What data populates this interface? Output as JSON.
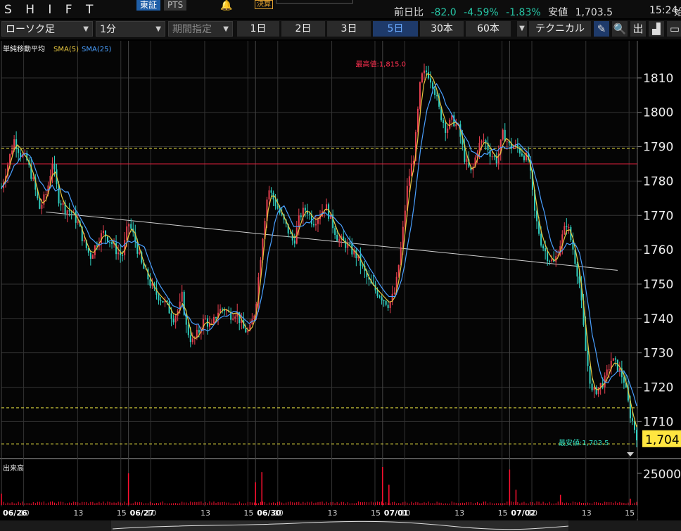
{
  "header": {
    "ticker": "S H I F T",
    "market_tabs": [
      "東証",
      "PTS"
    ],
    "badge": "決算",
    "quote": {
      "prev_label": "前日比",
      "change": "-82.0",
      "change_pct": "-4.59%",
      "change_pct2": "-1.83%",
      "low_label": "安値",
      "low_value": "1,703.5",
      "time": "15:24",
      "cut_text": "始"
    }
  },
  "toolbar": {
    "chart_type": "ローソク足",
    "interval": "1分",
    "range_label": "期間指定",
    "periods": [
      "1日",
      "2日",
      "3日",
      "5日",
      "30本",
      "60本"
    ],
    "active_period": "5日",
    "technical_label": "テクニカル",
    "tools": [
      "pencil-icon",
      "zoom-icon",
      "volume-icon",
      "area-chart-icon",
      "window-icon"
    ],
    "tool_glyphs": [
      "✎",
      "🔍",
      "出",
      "▟",
      "▭"
    ]
  },
  "legend": {
    "title": "単純移動平均",
    "sma5": "SMA(5)",
    "sma25": "SMA(25)"
  },
  "colors": {
    "background": "#000000",
    "grid": "#333333",
    "sma5": "#e8c840",
    "sma25": "#4aa0ff",
    "candle_up": "#e84050",
    "candle_down": "#30d0c0",
    "high_line": "#e0203a",
    "hline": "#e8e040",
    "trendline": "#d0d0d0",
    "volume": "#ff1030",
    "current_price_bg": "#ffe640"
  },
  "chart_data": {
    "type": "line",
    "title": "",
    "interval": "1分",
    "price_axis": {
      "ticks": [
        1710,
        1720,
        1730,
        1740,
        1750,
        1760,
        1770,
        1780,
        1790,
        1800,
        1810
      ],
      "ylim": [
        1702.5,
        1820
      ]
    },
    "x_labels": [
      {
        "label": "06/26",
        "idx": 0,
        "bold": true
      },
      {
        "label": "10",
        "idx": 0.035
      },
      {
        "label": "13",
        "idx": 0.12
      },
      {
        "label": "15",
        "idx": 0.188
      },
      {
        "label": "06/27",
        "idx": 0.2,
        "bold": true
      },
      {
        "label": "10",
        "idx": 0.235
      },
      {
        "label": "13",
        "idx": 0.32
      },
      {
        "label": "15",
        "idx": 0.388
      },
      {
        "label": "06/30",
        "idx": 0.4,
        "bold": true
      },
      {
        "label": "10",
        "idx": 0.435
      },
      {
        "label": "13",
        "idx": 0.52
      },
      {
        "label": "15",
        "idx": 0.588
      },
      {
        "label": "07/01",
        "idx": 0.6,
        "bold": true
      },
      {
        "label": "10",
        "idx": 0.635
      },
      {
        "label": "13",
        "idx": 0.72
      },
      {
        "label": "15",
        "idx": 0.788
      },
      {
        "label": "07/02",
        "idx": 0.8,
        "bold": true
      },
      {
        "label": "10",
        "idx": 0.835
      },
      {
        "label": "13",
        "idx": 0.92
      },
      {
        "label": "15",
        "idx": 0.988
      }
    ],
    "price_series": [
      [
        0,
        1778
      ],
      [
        0.01,
        1785
      ],
      [
        0.02,
        1792
      ],
      [
        0.03,
        1788
      ],
      [
        0.04,
        1786
      ],
      [
        0.05,
        1780
      ],
      [
        0.06,
        1772
      ],
      [
        0.07,
        1776
      ],
      [
        0.075,
        1780
      ],
      [
        0.08,
        1786
      ],
      [
        0.09,
        1775
      ],
      [
        0.1,
        1772
      ],
      [
        0.11,
        1771
      ],
      [
        0.12,
        1768
      ],
      [
        0.13,
        1762
      ],
      [
        0.14,
        1758
      ],
      [
        0.15,
        1762
      ],
      [
        0.16,
        1765
      ],
      [
        0.17,
        1763
      ],
      [
        0.18,
        1760
      ],
      [
        0.19,
        1758
      ],
      [
        0.2,
        1768
      ],
      [
        0.21,
        1763
      ],
      [
        0.22,
        1756
      ],
      [
        0.23,
        1752
      ],
      [
        0.24,
        1748
      ],
      [
        0.25,
        1746
      ],
      [
        0.26,
        1744
      ],
      [
        0.27,
        1740
      ],
      [
        0.28,
        1743
      ],
      [
        0.285,
        1747
      ],
      [
        0.29,
        1738
      ],
      [
        0.3,
        1733
      ],
      [
        0.31,
        1736
      ],
      [
        0.32,
        1740
      ],
      [
        0.33,
        1737
      ],
      [
        0.34,
        1742
      ],
      [
        0.35,
        1743
      ],
      [
        0.36,
        1741
      ],
      [
        0.37,
        1742
      ],
      [
        0.38,
        1737
      ],
      [
        0.39,
        1736
      ],
      [
        0.4,
        1743
      ],
      [
        0.41,
        1762
      ],
      [
        0.42,
        1778
      ],
      [
        0.43,
        1774
      ],
      [
        0.44,
        1770
      ],
      [
        0.45,
        1766
      ],
      [
        0.46,
        1762
      ],
      [
        0.47,
        1770
      ],
      [
        0.48,
        1772
      ],
      [
        0.49,
        1768
      ],
      [
        0.5,
        1770
      ],
      [
        0.51,
        1773
      ],
      [
        0.52,
        1768
      ],
      [
        0.53,
        1763
      ],
      [
        0.54,
        1762
      ],
      [
        0.55,
        1760
      ],
      [
        0.56,
        1758
      ],
      [
        0.57,
        1754
      ],
      [
        0.58,
        1750
      ],
      [
        0.59,
        1748
      ],
      [
        0.6,
        1746
      ],
      [
        0.61,
        1744
      ],
      [
        0.62,
        1748
      ],
      [
        0.63,
        1762
      ],
      [
        0.64,
        1780
      ],
      [
        0.65,
        1788
      ],
      [
        0.66,
        1810
      ],
      [
        0.67,
        1812
      ],
      [
        0.68,
        1808
      ],
      [
        0.69,
        1800
      ],
      [
        0.7,
        1795
      ],
      [
        0.71,
        1798
      ],
      [
        0.72,
        1795
      ],
      [
        0.73,
        1786
      ],
      [
        0.74,
        1782
      ],
      [
        0.75,
        1790
      ],
      [
        0.76,
        1792
      ],
      [
        0.77,
        1788
      ],
      [
        0.78,
        1786
      ],
      [
        0.79,
        1794
      ],
      [
        0.8,
        1790
      ],
      [
        0.81,
        1790
      ],
      [
        0.82,
        1788
      ],
      [
        0.83,
        1786
      ],
      [
        0.84,
        1770
      ],
      [
        0.85,
        1762
      ],
      [
        0.86,
        1758
      ],
      [
        0.87,
        1756
      ],
      [
        0.88,
        1762
      ],
      [
        0.89,
        1768
      ],
      [
        0.9,
        1760
      ],
      [
        0.91,
        1750
      ],
      [
        0.92,
        1730
      ],
      [
        0.93,
        1718
      ],
      [
        0.94,
        1720
      ],
      [
        0.95,
        1722
      ],
      [
        0.96,
        1728
      ],
      [
        0.97,
        1726
      ],
      [
        0.98,
        1722
      ],
      [
        0.99,
        1712
      ],
      [
        1.0,
        1706
      ]
    ],
    "price_high": {
      "label": "最高値:1,815.0",
      "value": 1815.0,
      "idx": 0.655
    },
    "price_low": {
      "label": "最安値:1,703.5",
      "value": 1703.5,
      "idx": 0.98
    },
    "current_price": "1,704",
    "horizontal_lines": [
      {
        "value": 1789.5,
        "style": "dashed",
        "color": "#e8e040"
      },
      {
        "value": 1785,
        "style": "solid",
        "color": "#e0203a"
      },
      {
        "value": 1714,
        "style": "dashed",
        "color": "#e8e040"
      },
      {
        "value": 1703.5,
        "style": "dashed",
        "color": "#e8e040"
      }
    ],
    "trendline": {
      "start": [
        0.07,
        1771
      ],
      "end": [
        0.97,
        1754
      ]
    },
    "volume": {
      "title": "出来高",
      "axis_label": "25000",
      "spikes": [
        [
          0.0,
          9000
        ],
        [
          0.2,
          25000
        ],
        [
          0.4,
          18000
        ],
        [
          0.41,
          26000
        ],
        [
          0.6,
          30000
        ],
        [
          0.61,
          16000
        ],
        [
          0.8,
          28000
        ],
        [
          0.81,
          12000
        ],
        [
          0.88,
          8000
        ],
        [
          0.99,
          5000
        ]
      ]
    }
  }
}
